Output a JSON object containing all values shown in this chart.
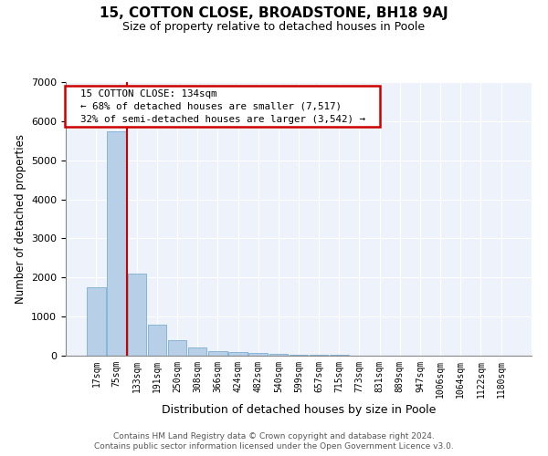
{
  "title": "15, COTTON CLOSE, BROADSTONE, BH18 9AJ",
  "subtitle": "Size of property relative to detached houses in Poole",
  "xlabel": "Distribution of detached houses by size in Poole",
  "ylabel": "Number of detached properties",
  "footer1": "Contains HM Land Registry data © Crown copyright and database right 2024.",
  "footer2": "Contains public sector information licensed under the Open Government Licence v3.0.",
  "annotation_line1": "  15 COTTON CLOSE: 134sqm  ",
  "annotation_line2": "  ← 68% of detached houses are smaller (7,517)  ",
  "annotation_line3": "  32% of semi-detached houses are larger (3,542) →  ",
  "bar_color": "#b8cfe8",
  "bar_edge_color": "#7aadd4",
  "ref_line_color": "#cc0000",
  "annotation_box_color": "#cc0000",
  "background_color": "#eef2fb",
  "grid_color": "#ffffff",
  "ylim": [
    0,
    7000
  ],
  "yticks": [
    0,
    1000,
    2000,
    3000,
    4000,
    5000,
    6000,
    7000
  ],
  "categories": [
    "17sqm",
    "75sqm",
    "133sqm",
    "191sqm",
    "250sqm",
    "308sqm",
    "366sqm",
    "424sqm",
    "482sqm",
    "540sqm",
    "599sqm",
    "657sqm",
    "715sqm",
    "773sqm",
    "831sqm",
    "889sqm",
    "947sqm",
    "1006sqm",
    "1064sqm",
    "1122sqm",
    "1180sqm"
  ],
  "values": [
    1750,
    5750,
    2100,
    800,
    390,
    200,
    115,
    100,
    65,
    50,
    30,
    18,
    12,
    8,
    6,
    5,
    4,
    3,
    2,
    2,
    1
  ],
  "ref_line_index": 1.5,
  "figsize": [
    6.0,
    5.0
  ],
  "dpi": 100
}
